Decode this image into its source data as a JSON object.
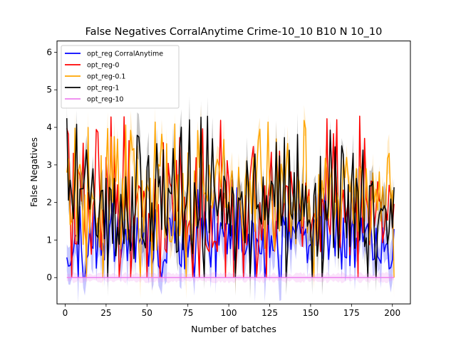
{
  "chart_data": {
    "type": "line",
    "title": "False Negatives CorralAnytime Crime-10_10 B10 N 10_10",
    "xlabel": "Number of batches",
    "ylabel": "False Negatives",
    "xlim": [
      -5,
      211
    ],
    "ylim": [
      -0.7,
      6.3
    ],
    "x_ticks": [
      0,
      25,
      50,
      75,
      100,
      125,
      150,
      175,
      200
    ],
    "y_ticks": [
      0,
      1,
      2,
      3,
      4,
      5,
      6
    ],
    "grid": false,
    "legend_position": "top-left",
    "series": [
      {
        "name": "opt_reg CorralAnytime",
        "color": "#0000ff",
        "seed": 11,
        "base": 0.9,
        "noise": 0.7,
        "spike_prob": 0.18,
        "spike_min": 1.2,
        "spike_max": 2.4,
        "band": 0.55
      },
      {
        "name": "opt_reg-0",
        "color": "#ff0000",
        "seed": 22,
        "base": 1.6,
        "noise": 1.0,
        "spike_prob": 0.3,
        "spike_min": 1.5,
        "spike_max": 4.3,
        "band": 0
      },
      {
        "name": "opt_reg-0.1",
        "color": "#ffa500",
        "seed": 33,
        "base": 1.9,
        "noise": 1.2,
        "spike_prob": 0.35,
        "spike_min": 1.8,
        "spike_max": 4.2,
        "band": 0.45
      },
      {
        "name": "opt_reg-1",
        "color": "#000000",
        "seed": 44,
        "base": 1.6,
        "noise": 1.1,
        "spike_prob": 0.33,
        "spike_min": 1.5,
        "spike_max": 4.4,
        "band": 0.5
      },
      {
        "name": "opt_reg-10",
        "color": "#ee82ee",
        "seed": 55,
        "base": 0.0,
        "noise": 0.0,
        "spike_prob": 0.0,
        "spike_min": 0,
        "spike_max": 0,
        "band": 0.12
      }
    ]
  }
}
